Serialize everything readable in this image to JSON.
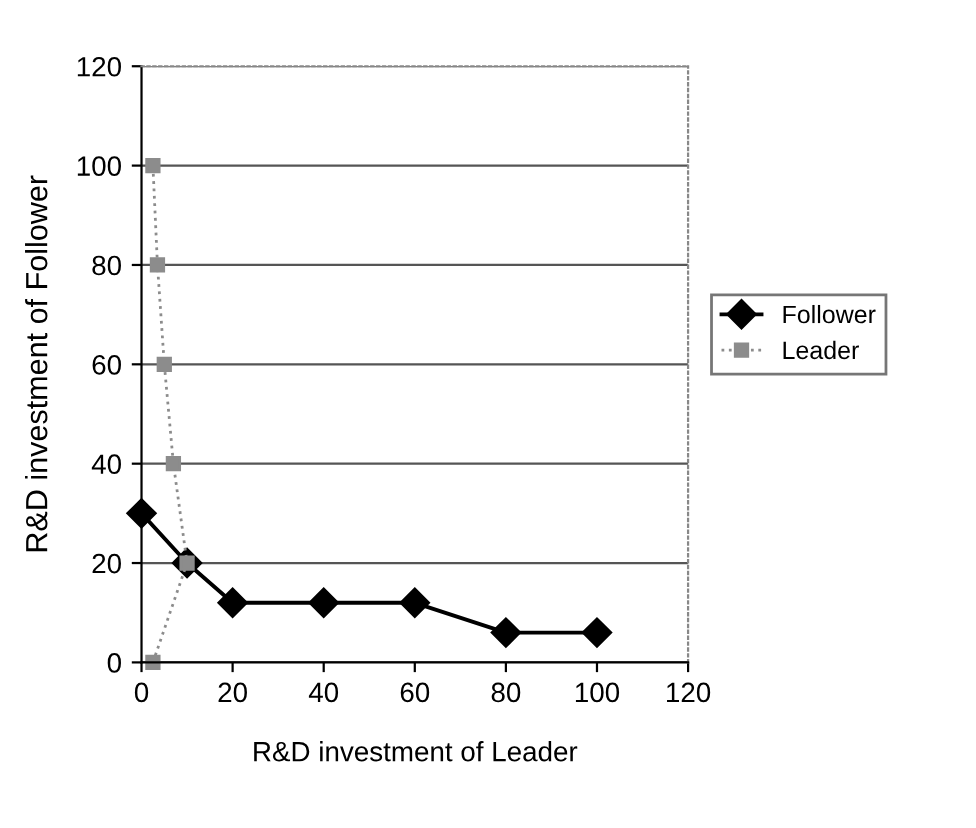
{
  "chart_data": {
    "type": "line",
    "xlabel": "R&D investment of Leader",
    "ylabel": "R&D investment of Follower",
    "xlim": [
      0,
      120
    ],
    "xticks": [
      0,
      20,
      40,
      60,
      80,
      100,
      120
    ],
    "ylim": [
      0,
      120
    ],
    "yticks": [
      0,
      20,
      40,
      60,
      80,
      100,
      120
    ],
    "grid": "y",
    "legend": "right",
    "series": [
      {
        "name": "Follower",
        "color": "#000000",
        "marker": "diamond",
        "line_style": "solid",
        "x": [
          0,
          10,
          20,
          40,
          60,
          80,
          100
        ],
        "values": [
          30,
          20,
          12,
          12,
          12,
          6,
          6
        ]
      },
      {
        "name": "Leader",
        "color": "#8c8c8c",
        "marker": "square",
        "line_style": "dotted",
        "x": [
          2.5,
          10,
          7,
          5,
          3.5,
          2.5
        ],
        "values": [
          0,
          20,
          40,
          60,
          80,
          100
        ]
      }
    ]
  }
}
